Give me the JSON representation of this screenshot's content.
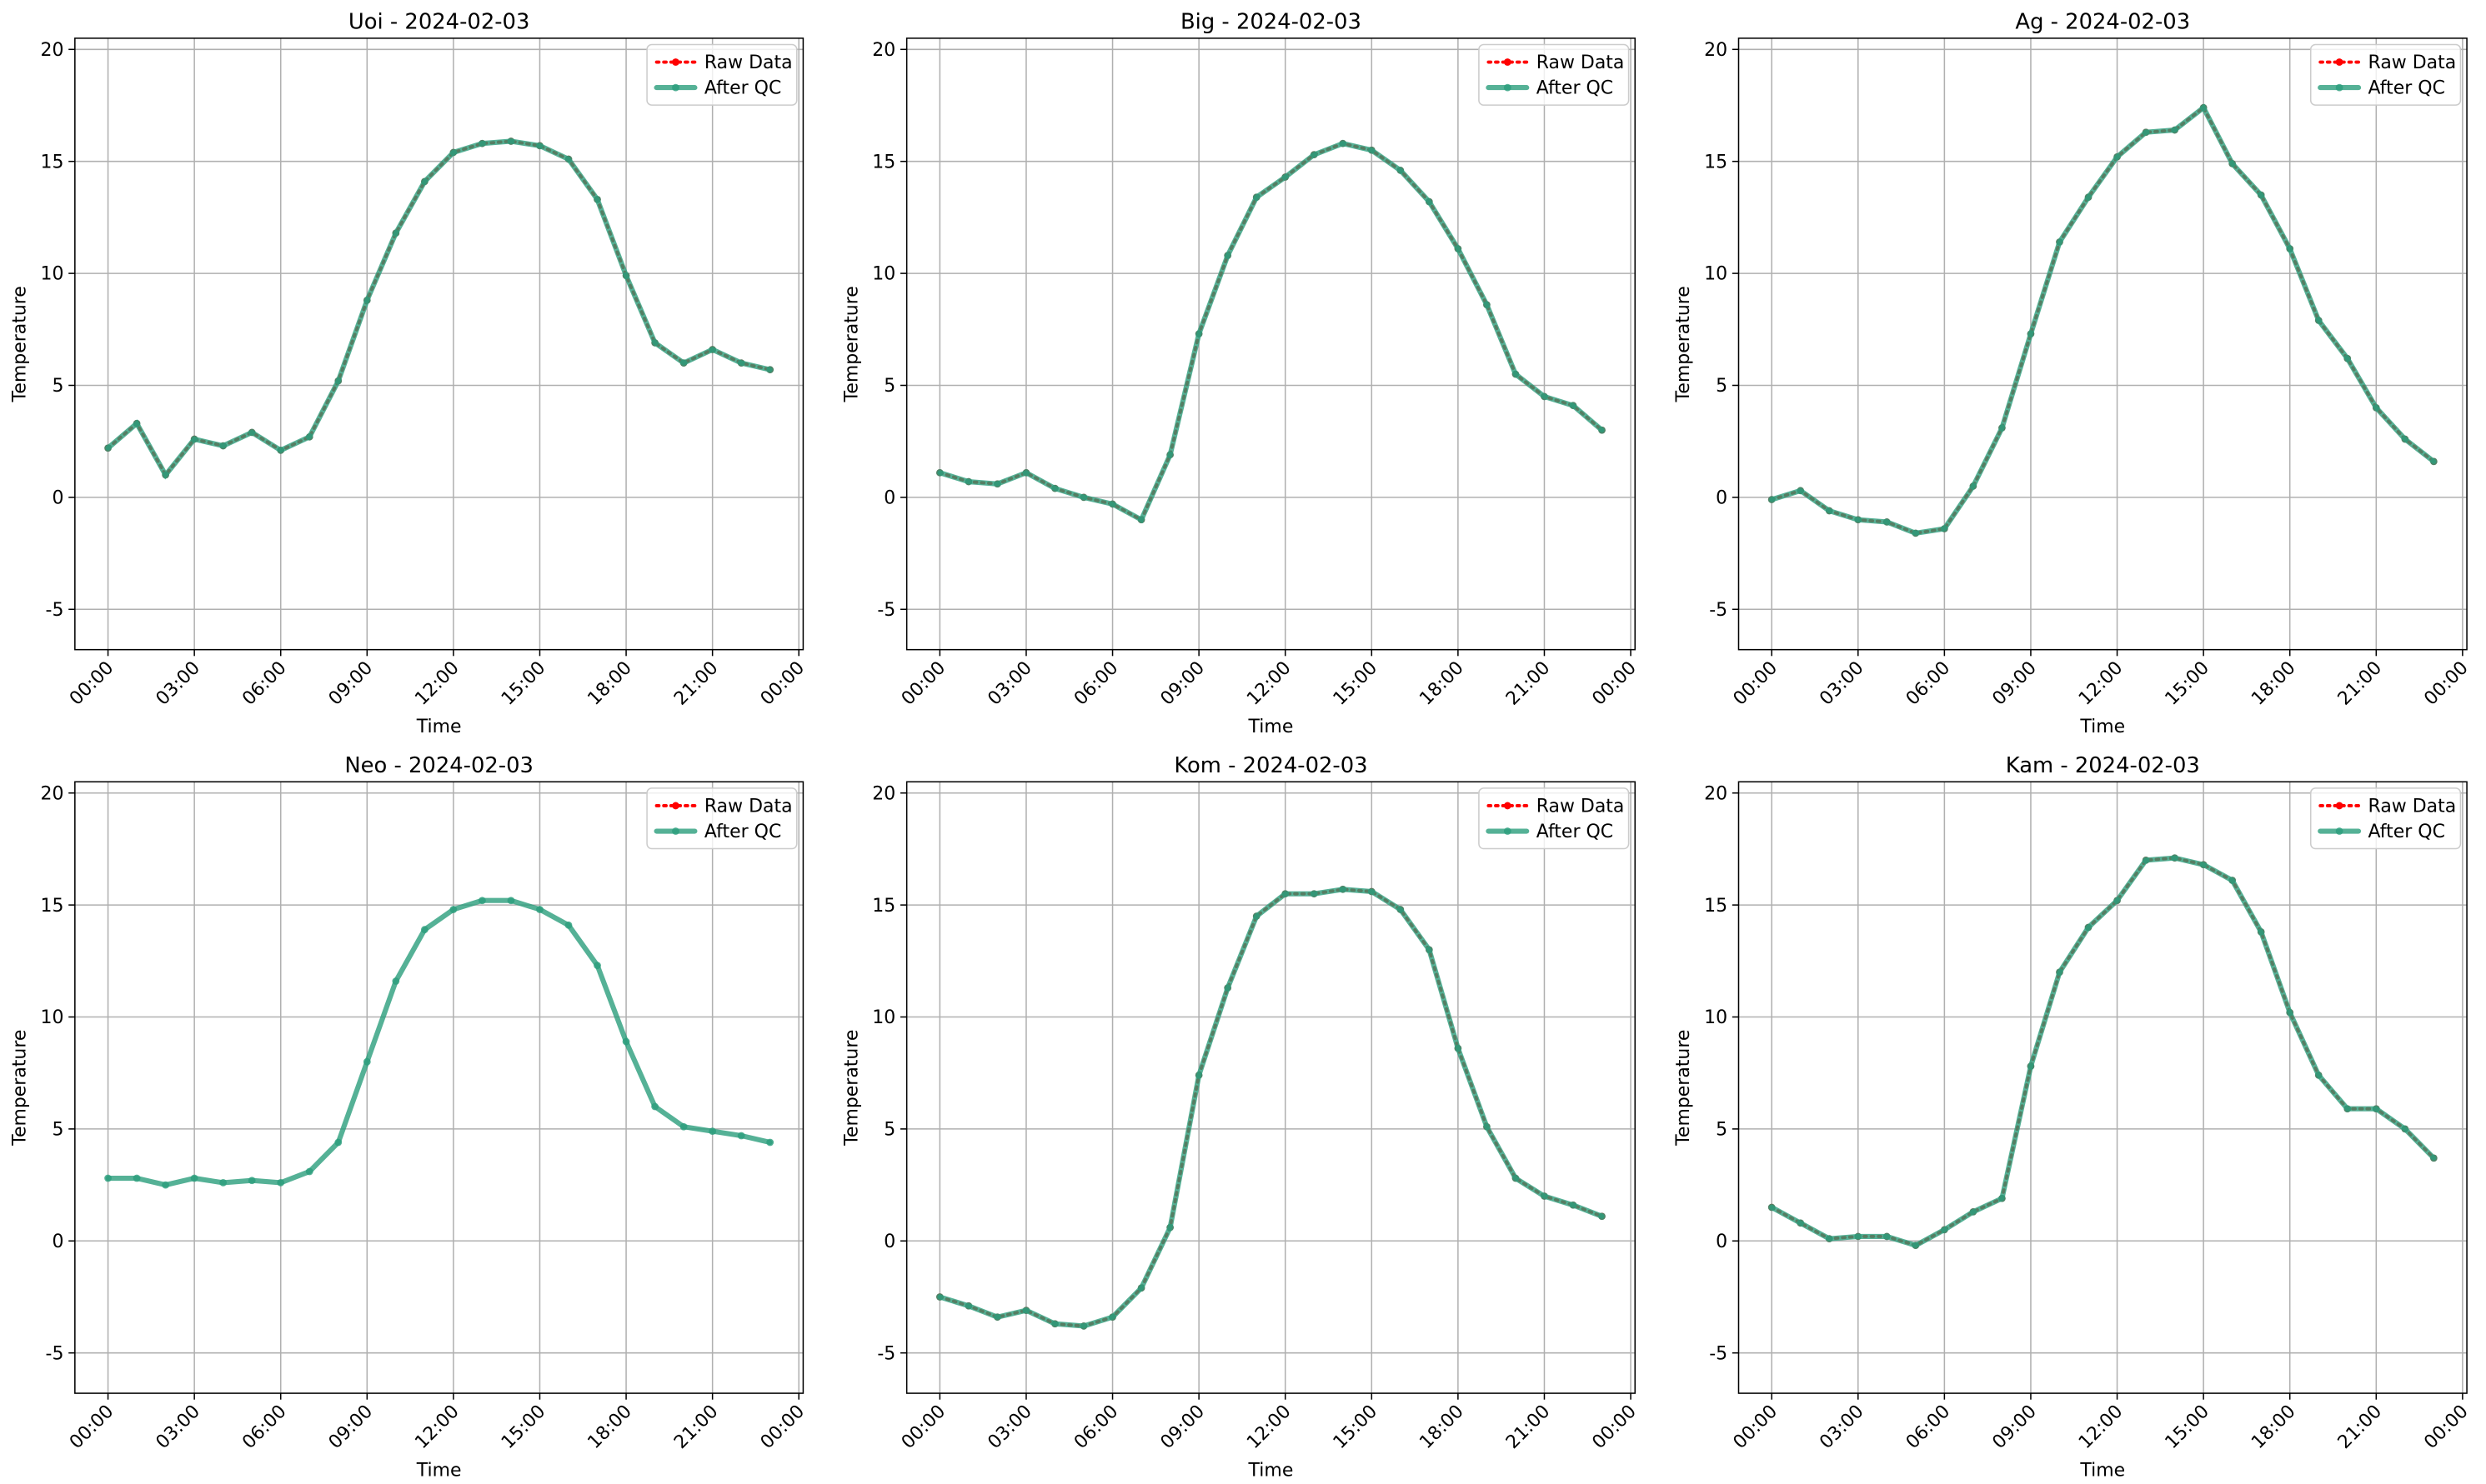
{
  "chart_data": [
    {
      "type": "line",
      "title": "Uoi - 2024-02-03",
      "xlabel": "Time",
      "ylabel": "Temperature",
      "x": [
        0,
        1,
        2,
        3,
        4,
        5,
        6,
        7,
        8,
        9,
        10,
        11,
        12,
        13,
        14,
        15,
        16,
        17,
        18,
        19,
        20,
        21,
        22,
        23
      ],
      "series": [
        {
          "name": "Raw Data",
          "color": "#ff0000",
          "values": [
            2.2,
            3.3,
            1.0,
            2.6,
            2.3,
            2.9,
            2.1,
            2.7,
            5.2,
            8.8,
            11.8,
            14.1,
            15.4,
            15.8,
            15.9,
            15.7,
            15.1,
            13.3,
            9.9,
            6.9,
            6.0,
            6.6,
            6.0,
            5.7
          ]
        },
        {
          "name": "After QC",
          "color": "#2a9d7c",
          "values": [
            2.2,
            3.3,
            1.0,
            2.6,
            2.3,
            2.9,
            2.1,
            2.7,
            5.2,
            8.8,
            11.8,
            14.1,
            15.4,
            15.8,
            15.9,
            15.7,
            15.1,
            13.3,
            9.9,
            6.9,
            6.0,
            6.6,
            6.0,
            5.7
          ]
        }
      ],
      "xlim": [
        -1.15,
        24.15
      ],
      "ylim": [
        -6.8,
        20.5
      ],
      "yticks": [
        -5,
        0,
        5,
        10,
        15,
        20
      ],
      "xticks": [
        {
          "value": 0,
          "label": "00:00"
        },
        {
          "value": 3,
          "label": "03:00"
        },
        {
          "value": 6,
          "label": "06:00"
        },
        {
          "value": 9,
          "label": "09:00"
        },
        {
          "value": 12,
          "label": "12:00"
        },
        {
          "value": 15,
          "label": "15:00"
        },
        {
          "value": 18,
          "label": "18:00"
        },
        {
          "value": 21,
          "label": "21:00"
        },
        {
          "value": 24,
          "label": "00:00"
        }
      ],
      "grid": true,
      "legend": "upper right"
    },
    {
      "type": "line",
      "title": "Big - 2024-02-03",
      "xlabel": "Time",
      "ylabel": "Temperature",
      "x": [
        0,
        1,
        2,
        3,
        4,
        5,
        6,
        7,
        8,
        9,
        10,
        11,
        12,
        13,
        14,
        15,
        16,
        17,
        18,
        19,
        20,
        21,
        22,
        23
      ],
      "series": [
        {
          "name": "Raw Data",
          "color": "#ff0000",
          "values": [
            1.1,
            0.7,
            0.6,
            1.1,
            0.4,
            0.0,
            -0.3,
            -1.0,
            1.9,
            7.3,
            10.8,
            13.4,
            14.3,
            15.3,
            15.8,
            15.5,
            14.6,
            13.2,
            11.1,
            8.6,
            5.5,
            4.5,
            4.1,
            3.0
          ]
        },
        {
          "name": "After QC",
          "color": "#2a9d7c",
          "values": [
            1.1,
            0.7,
            0.6,
            1.1,
            0.4,
            0.0,
            -0.3,
            -1.0,
            1.9,
            7.3,
            10.8,
            13.4,
            14.3,
            15.3,
            15.8,
            15.5,
            14.6,
            13.2,
            11.1,
            8.6,
            5.5,
            4.5,
            4.1,
            3.0
          ]
        }
      ],
      "xlim": [
        -1.15,
        24.15
      ],
      "ylim": [
        -6.8,
        20.5
      ],
      "yticks": [
        -5,
        0,
        5,
        10,
        15,
        20
      ],
      "xticks": [
        {
          "value": 0,
          "label": "00:00"
        },
        {
          "value": 3,
          "label": "03:00"
        },
        {
          "value": 6,
          "label": "06:00"
        },
        {
          "value": 9,
          "label": "09:00"
        },
        {
          "value": 12,
          "label": "12:00"
        },
        {
          "value": 15,
          "label": "15:00"
        },
        {
          "value": 18,
          "label": "18:00"
        },
        {
          "value": 21,
          "label": "21:00"
        },
        {
          "value": 24,
          "label": "00:00"
        }
      ],
      "grid": true,
      "legend": "upper right"
    },
    {
      "type": "line",
      "title": "Ag - 2024-02-03",
      "xlabel": "Time",
      "ylabel": "Temperature",
      "x": [
        0,
        1,
        2,
        3,
        4,
        5,
        6,
        7,
        8,
        9,
        10,
        11,
        12,
        13,
        14,
        15,
        16,
        17,
        18,
        19,
        20,
        21,
        22,
        23
      ],
      "series": [
        {
          "name": "Raw Data",
          "color": "#ff0000",
          "values": [
            -0.1,
            0.3,
            -0.6,
            -1.0,
            -1.1,
            -1.6,
            -1.4,
            0.5,
            3.1,
            7.3,
            11.4,
            13.4,
            15.2,
            16.3,
            16.4,
            17.4,
            14.9,
            13.5,
            11.1,
            7.9,
            6.2,
            4.0,
            2.6,
            1.6
          ]
        },
        {
          "name": "After QC",
          "color": "#2a9d7c",
          "values": [
            -0.1,
            0.3,
            -0.6,
            -1.0,
            -1.1,
            -1.6,
            -1.4,
            0.5,
            3.1,
            7.3,
            11.4,
            13.4,
            15.2,
            16.3,
            16.4,
            17.4,
            14.9,
            13.5,
            11.1,
            7.9,
            6.2,
            4.0,
            2.6,
            1.6
          ]
        }
      ],
      "xlim": [
        -1.15,
        24.15
      ],
      "ylim": [
        -6.8,
        20.5
      ],
      "yticks": [
        -5,
        0,
        5,
        10,
        15,
        20
      ],
      "xticks": [
        {
          "value": 0,
          "label": "00:00"
        },
        {
          "value": 3,
          "label": "03:00"
        },
        {
          "value": 6,
          "label": "06:00"
        },
        {
          "value": 9,
          "label": "09:00"
        },
        {
          "value": 12,
          "label": "12:00"
        },
        {
          "value": 15,
          "label": "15:00"
        },
        {
          "value": 18,
          "label": "18:00"
        },
        {
          "value": 21,
          "label": "21:00"
        },
        {
          "value": 24,
          "label": "00:00"
        }
      ],
      "grid": true,
      "legend": "upper right"
    },
    {
      "type": "line",
      "title": "Neo - 2024-02-03",
      "xlabel": "Time",
      "ylabel": "Temperature",
      "x": [
        0,
        1,
        2,
        3,
        4,
        5,
        6,
        7,
        8,
        9,
        10,
        11,
        12,
        13,
        14,
        15,
        16,
        17,
        18,
        19,
        20,
        21,
        22,
        23
      ],
      "series": [
        {
          "name": "Raw Data",
          "color": "#ff0000",
          "values": [
            null,
            null,
            null,
            null,
            null,
            null,
            null,
            null,
            null,
            null,
            null,
            null,
            null,
            null,
            null,
            null,
            null,
            null,
            null,
            null,
            null,
            null,
            null,
            null
          ]
        },
        {
          "name": "After QC",
          "color": "#2a9d7c",
          "values": [
            2.8,
            2.8,
            2.5,
            2.8,
            2.6,
            2.7,
            2.6,
            3.1,
            4.4,
            8.0,
            11.6,
            13.9,
            14.8,
            15.2,
            15.2,
            14.8,
            14.1,
            12.3,
            8.9,
            6.0,
            5.1,
            4.9,
            4.7,
            4.4
          ]
        }
      ],
      "xlim": [
        -1.15,
        24.15
      ],
      "ylim": [
        -6.8,
        20.5
      ],
      "yticks": [
        -5,
        0,
        5,
        10,
        15,
        20
      ],
      "xticks": [
        {
          "value": 0,
          "label": "00:00"
        },
        {
          "value": 3,
          "label": "03:00"
        },
        {
          "value": 6,
          "label": "06:00"
        },
        {
          "value": 9,
          "label": "09:00"
        },
        {
          "value": 12,
          "label": "12:00"
        },
        {
          "value": 15,
          "label": "15:00"
        },
        {
          "value": 18,
          "label": "18:00"
        },
        {
          "value": 21,
          "label": "21:00"
        },
        {
          "value": 24,
          "label": "00:00"
        }
      ],
      "grid": true,
      "legend": "upper right"
    },
    {
      "type": "line",
      "title": "Kom - 2024-02-03",
      "xlabel": "Time",
      "ylabel": "Temperature",
      "x": [
        0,
        1,
        2,
        3,
        4,
        5,
        6,
        7,
        8,
        9,
        10,
        11,
        12,
        13,
        14,
        15,
        16,
        17,
        18,
        19,
        20,
        21,
        22,
        23
      ],
      "series": [
        {
          "name": "Raw Data",
          "color": "#ff0000",
          "values": [
            -2.5,
            -2.9,
            -3.4,
            -3.1,
            -3.7,
            -3.8,
            -3.4,
            -2.1,
            0.6,
            7.4,
            11.3,
            14.5,
            15.5,
            15.5,
            15.7,
            15.6,
            14.8,
            13.0,
            8.6,
            5.1,
            2.8,
            2.0,
            1.6,
            1.1
          ]
        },
        {
          "name": "After QC",
          "color": "#2a9d7c",
          "values": [
            -2.5,
            -2.9,
            -3.4,
            -3.1,
            -3.7,
            -3.8,
            -3.4,
            -2.1,
            0.6,
            7.4,
            11.3,
            14.5,
            15.5,
            15.5,
            15.7,
            15.6,
            14.8,
            13.0,
            8.6,
            5.1,
            2.8,
            2.0,
            1.6,
            1.1
          ]
        }
      ],
      "xlim": [
        -1.15,
        24.15
      ],
      "ylim": [
        -6.8,
        20.5
      ],
      "yticks": [
        -5,
        0,
        5,
        10,
        15,
        20
      ],
      "xticks": [
        {
          "value": 0,
          "label": "00:00"
        },
        {
          "value": 3,
          "label": "03:00"
        },
        {
          "value": 6,
          "label": "06:00"
        },
        {
          "value": 9,
          "label": "09:00"
        },
        {
          "value": 12,
          "label": "12:00"
        },
        {
          "value": 15,
          "label": "15:00"
        },
        {
          "value": 18,
          "label": "18:00"
        },
        {
          "value": 21,
          "label": "21:00"
        },
        {
          "value": 24,
          "label": "00:00"
        }
      ],
      "grid": true,
      "legend": "upper right"
    },
    {
      "type": "line",
      "title": "Kam - 2024-02-03",
      "xlabel": "Time",
      "ylabel": "Temperature",
      "x": [
        0,
        1,
        2,
        3,
        4,
        5,
        6,
        7,
        8,
        9,
        10,
        11,
        12,
        13,
        14,
        15,
        16,
        17,
        18,
        19,
        20,
        21,
        22,
        23
      ],
      "series": [
        {
          "name": "Raw Data",
          "color": "#ff0000",
          "values": [
            1.5,
            0.8,
            0.1,
            0.2,
            0.2,
            -0.2,
            0.5,
            1.3,
            1.9,
            7.8,
            12.0,
            14.0,
            15.2,
            17.0,
            17.1,
            16.8,
            16.1,
            13.8,
            10.2,
            7.4,
            5.9,
            5.9,
            5.0,
            3.7
          ]
        },
        {
          "name": "After QC",
          "color": "#2a9d7c",
          "values": [
            1.5,
            0.8,
            0.1,
            0.2,
            0.2,
            -0.2,
            0.5,
            1.3,
            1.9,
            7.8,
            12.0,
            14.0,
            15.2,
            17.0,
            17.1,
            16.8,
            16.1,
            13.8,
            10.2,
            7.4,
            5.9,
            5.9,
            5.0,
            3.7
          ]
        }
      ],
      "xlim": [
        -1.15,
        24.15
      ],
      "ylim": [
        -6.8,
        20.5
      ],
      "yticks": [
        -5,
        0,
        5,
        10,
        15,
        20
      ],
      "xticks": [
        {
          "value": 0,
          "label": "00:00"
        },
        {
          "value": 3,
          "label": "03:00"
        },
        {
          "value": 6,
          "label": "06:00"
        },
        {
          "value": 9,
          "label": "09:00"
        },
        {
          "value": 12,
          "label": "12:00"
        },
        {
          "value": 15,
          "label": "15:00"
        },
        {
          "value": 18,
          "label": "18:00"
        },
        {
          "value": 21,
          "label": "21:00"
        },
        {
          "value": 24,
          "label": "00:00"
        }
      ],
      "grid": true,
      "legend": "upper right"
    }
  ]
}
